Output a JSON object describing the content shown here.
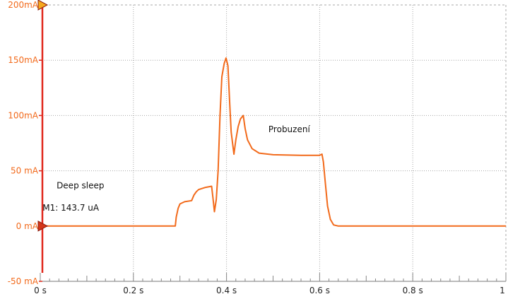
{
  "chart_data": {
    "type": "line",
    "title": "",
    "xlabel": "",
    "ylabel": "",
    "xlim": [
      0,
      1
    ],
    "ylim": [
      -50,
      200
    ],
    "grid": true,
    "x_ticks": [
      {
        "value": 0,
        "label": "0 s"
      },
      {
        "value": 0.2,
        "label": "0.2 s"
      },
      {
        "value": 0.4,
        "label": "0.4 s"
      },
      {
        "value": 0.6,
        "label": "0.6 s"
      },
      {
        "value": 0.8,
        "label": "0.8 s"
      },
      {
        "value": 1,
        "label": "1 s"
      }
    ],
    "y_ticks": [
      {
        "value": 200,
        "label": "200mA"
      },
      {
        "value": 150,
        "label": "150mA"
      },
      {
        "value": 100,
        "label": "100mA"
      },
      {
        "value": 50,
        "label": "50  mA"
      },
      {
        "value": 0,
        "label": "0    mA"
      },
      {
        "value": -50,
        "label": "-50 mA"
      }
    ],
    "series": [
      {
        "name": "",
        "color": "#f26a1b",
        "points": [
          [
            0,
            0
          ],
          [
            0.29,
            0
          ],
          [
            0.292,
            8
          ],
          [
            0.296,
            16
          ],
          [
            0.3,
            20
          ],
          [
            0.31,
            22
          ],
          [
            0.325,
            23
          ],
          [
            0.33,
            28
          ],
          [
            0.335,
            31
          ],
          [
            0.34,
            33
          ],
          [
            0.355,
            35
          ],
          [
            0.368,
            36
          ],
          [
            0.371,
            25
          ],
          [
            0.374,
            13
          ],
          [
            0.378,
            24
          ],
          [
            0.382,
            50
          ],
          [
            0.386,
            100
          ],
          [
            0.39,
            135
          ],
          [
            0.395,
            147
          ],
          [
            0.399,
            152
          ],
          [
            0.403,
            145
          ],
          [
            0.407,
            110
          ],
          [
            0.41,
            85
          ],
          [
            0.416,
            65
          ],
          [
            0.42,
            78
          ],
          [
            0.425,
            90
          ],
          [
            0.43,
            97
          ],
          [
            0.436,
            100
          ],
          [
            0.44,
            88
          ],
          [
            0.445,
            78
          ],
          [
            0.455,
            70
          ],
          [
            0.47,
            66
          ],
          [
            0.5,
            64.5
          ],
          [
            0.56,
            64
          ],
          [
            0.6,
            64
          ],
          [
            0.605,
            65
          ],
          [
            0.608,
            58
          ],
          [
            0.612,
            40
          ],
          [
            0.617,
            18
          ],
          [
            0.623,
            6
          ],
          [
            0.63,
            1
          ],
          [
            0.64,
            0
          ],
          [
            1,
            0
          ]
        ]
      }
    ],
    "annotations": [
      {
        "text": "Probuzení",
        "x": 0.49,
        "y": 85
      },
      {
        "text": "Deep sleep",
        "x": 0.035,
        "y": 34
      },
      {
        "text": "M1: 143.7 uA",
        "x": 0.005,
        "y": 14
      }
    ],
    "markers": [
      {
        "name": "top-cursor",
        "value": 200
      },
      {
        "name": "zero-cursor",
        "value": 0
      }
    ]
  },
  "colors": {
    "trace": "#f26a1b",
    "axis": "#e0281c",
    "grid": "#a8a8a8",
    "marker_fill": "#f6a91e"
  }
}
